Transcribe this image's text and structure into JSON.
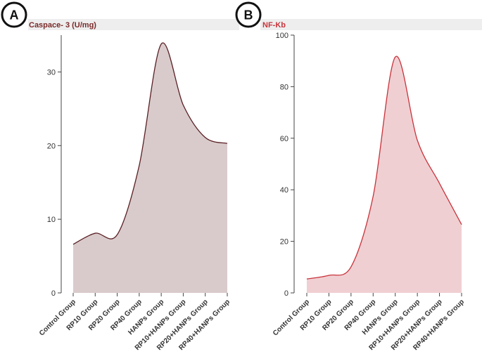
{
  "chart_data": [
    {
      "type": "area",
      "panel_label": "A",
      "title": "Caspace- 3 (U/mg)",
      "categories": [
        "Control Group",
        "RP10 Group",
        "RP20 Group",
        "RP40 Group",
        "HANPs Group",
        "RP10+HANPs Group",
        "RP20+HANPs Group",
        "RP40+HANPs Group"
      ],
      "values": [
        6.6,
        8.1,
        7.9,
        17.3,
        33.8,
        25.5,
        21.1,
        20.3
      ],
      "ylim": [
        0,
        35
      ],
      "yticks": [
        "0",
        "10",
        "20",
        "30"
      ],
      "ytick_values": [
        0,
        10,
        20,
        30
      ],
      "line_color": "#5a1f24",
      "fill_color": "#d9cbcb",
      "title_color": "#7a2a2a"
    },
    {
      "type": "area",
      "panel_label": "B",
      "title": "NF-Kb",
      "categories": [
        "Control Group",
        "RP10 Group",
        "RP20 Group",
        "RP40 Group",
        "HANPs Group",
        "RP10+HANPs Group",
        "RP20+HANPs Group",
        "RP40+HANPs Group"
      ],
      "values": [
        5.4,
        6.8,
        10.1,
        37.5,
        91.5,
        59.2,
        42.5,
        26.5
      ],
      "ylim": [
        0,
        100
      ],
      "yticks": [
        "0",
        "20",
        "40",
        "60",
        "80",
        "100"
      ],
      "ytick_values": [
        0,
        20,
        40,
        60,
        80,
        100
      ],
      "line_color": "#c8333b",
      "fill_color": "#f0cfd2",
      "title_color": "#c8333b"
    }
  ]
}
